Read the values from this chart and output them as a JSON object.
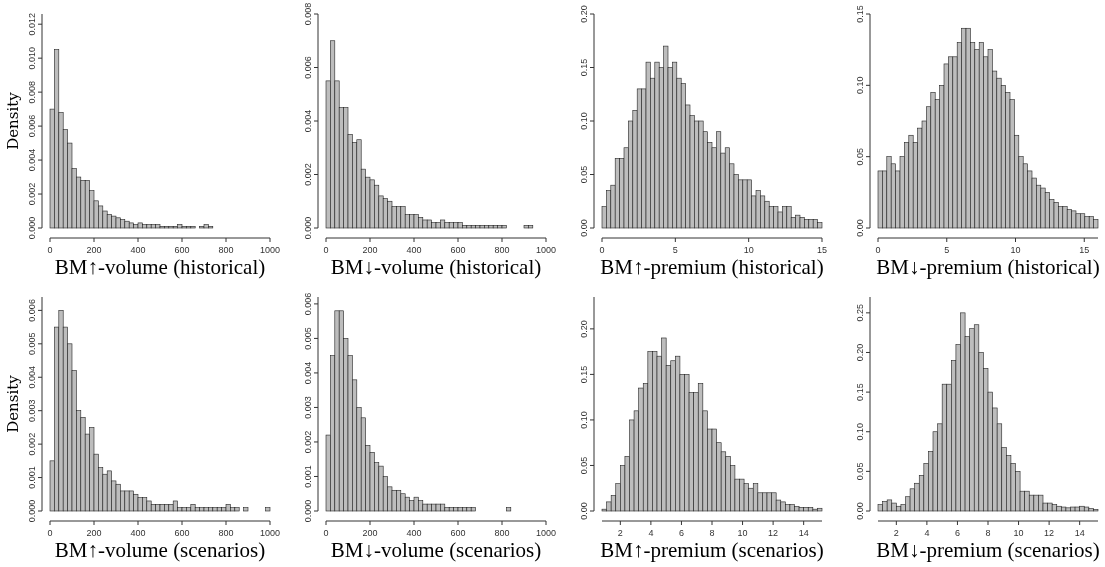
{
  "chart_data": [
    {
      "type": "histogram",
      "xlabel": "BM↑-volume (historical)",
      "ylabel": "Density",
      "color": "#bdbdbd",
      "bins": [
        0,
        20,
        40,
        60,
        80,
        100,
        120,
        140,
        160,
        180,
        200,
        220,
        240,
        260,
        280,
        300,
        320,
        340,
        360,
        380,
        400,
        420,
        440,
        460,
        480,
        500,
        520,
        540,
        560,
        580,
        600,
        620,
        640,
        660,
        680,
        700,
        720,
        740,
        760,
        780,
        800,
        820,
        840,
        860,
        880,
        900,
        920,
        940,
        960,
        980,
        1000
      ],
      "values": [
        0.007,
        0.0105,
        0.0068,
        0.0058,
        0.005,
        0.0035,
        0.003,
        0.0028,
        0.0028,
        0.0022,
        0.0016,
        0.0013,
        0.001,
        0.0008,
        0.0007,
        0.0006,
        0.0005,
        0.0004,
        0.0003,
        0.0002,
        0.0003,
        0.0002,
        0.0002,
        0.0002,
        0.0002,
        0.0001,
        0.0001,
        0.0001,
        0.0001,
        0.0002,
        0.0001,
        0.0001,
        0.0001,
        0,
        0.0001,
        0.0002,
        0.0001,
        0,
        0,
        0,
        0,
        0,
        0,
        0,
        0,
        0,
        0,
        0,
        0,
        0
      ],
      "xlim": [
        0,
        1000
      ],
      "xticks": [
        0,
        200,
        400,
        600,
        800,
        1000
      ],
      "ylim": [
        0,
        0.0126
      ],
      "yticks": [
        {
          "value": 0,
          "label": "0.000"
        },
        {
          "value": 0.002,
          "label": "0.002"
        },
        {
          "value": 0.004,
          "label": "0.004"
        },
        {
          "value": 0.006,
          "label": "0.006"
        },
        {
          "value": 0.008,
          "label": "0.008"
        },
        {
          "value": 0.01,
          "label": "0.010"
        },
        {
          "value": 0.012,
          "label": "0.012"
        }
      ]
    },
    {
      "type": "histogram",
      "xlabel": "BM↓-volume (historical)",
      "color": "#bdbdbd",
      "bins": [
        0,
        20,
        40,
        60,
        80,
        100,
        120,
        140,
        160,
        180,
        200,
        220,
        240,
        260,
        280,
        300,
        320,
        340,
        360,
        380,
        400,
        420,
        440,
        460,
        480,
        500,
        520,
        540,
        560,
        580,
        600,
        620,
        640,
        660,
        680,
        700,
        720,
        740,
        760,
        780,
        800,
        820,
        840,
        860,
        880,
        900,
        920,
        940,
        960,
        980,
        1000
      ],
      "values": [
        0.0055,
        0.007,
        0.0055,
        0.0045,
        0.0045,
        0.0035,
        0.0032,
        0.0033,
        0.0022,
        0.0019,
        0.0018,
        0.0016,
        0.0012,
        0.0011,
        0.001,
        0.0008,
        0.0008,
        0.0008,
        0.0005,
        0.0005,
        0.0005,
        0.0004,
        0.0003,
        0.0003,
        0.0002,
        0.0002,
        0.0003,
        0.0002,
        0.0002,
        0.0002,
        0.0002,
        0.0001,
        0.0001,
        0.0001,
        0.0001,
        0.0001,
        0.0001,
        0.0001,
        0.0001,
        0.0001,
        0.0001,
        0,
        0,
        0,
        0,
        0.0001,
        0.0001,
        0,
        0,
        0
      ],
      "xlim": [
        0,
        1000
      ],
      "xticks": [
        0,
        200,
        400,
        600,
        800,
        1000
      ],
      "ylim": [
        0,
        0.008
      ],
      "yticks": [
        {
          "value": 0,
          "label": "0.000"
        },
        {
          "value": 0.002,
          "label": "0.002"
        },
        {
          "value": 0.004,
          "label": "0.004"
        },
        {
          "value": 0.006,
          "label": "0.006"
        },
        {
          "value": 0.008,
          "label": "0.008"
        }
      ]
    },
    {
      "type": "histogram",
      "xlabel": "BM↑-premium (historical)",
      "color": "#bdbdbd",
      "bins": [
        0,
        0.3,
        0.6,
        0.9,
        1.2,
        1.5,
        1.8,
        2.1,
        2.4,
        2.7,
        3,
        3.3,
        3.6,
        3.9,
        4.2,
        4.5,
        4.8,
        5.1,
        5.4,
        5.7,
        6,
        6.3,
        6.6,
        6.9,
        7.2,
        7.5,
        7.8,
        8.1,
        8.4,
        8.7,
        9,
        9.3,
        9.6,
        9.9,
        10.2,
        10.5,
        10.8,
        11.1,
        11.4,
        11.7,
        12,
        12.3,
        12.6,
        12.9,
        13.2,
        13.5,
        13.8,
        14.1,
        14.4,
        14.7,
        15
      ],
      "values": [
        0.02,
        0.035,
        0.04,
        0.065,
        0.065,
        0.075,
        0.1,
        0.11,
        0.13,
        0.13,
        0.155,
        0.14,
        0.155,
        0.15,
        0.17,
        0.15,
        0.155,
        0.14,
        0.135,
        0.115,
        0.105,
        0.1,
        0.1,
        0.09,
        0.08,
        0.075,
        0.09,
        0.07,
        0.075,
        0.06,
        0.05,
        0.045,
        0.045,
        0.045,
        0.03,
        0.035,
        0.03,
        0.025,
        0.02,
        0.02,
        0.015,
        0.02,
        0.02,
        0.01,
        0.012,
        0.01,
        0.008,
        0.008,
        0.008,
        0.005
      ],
      "xlim": [
        0,
        15
      ],
      "xticks": [
        0,
        5,
        10,
        15
      ],
      "ylim": [
        0,
        0.2
      ],
      "yticks": [
        {
          "value": 0,
          "label": "0.00"
        },
        {
          "value": 0.05,
          "label": "0.05"
        },
        {
          "value": 0.1,
          "label": "0.10"
        },
        {
          "value": 0.15,
          "label": "0.15"
        },
        {
          "value": 0.2,
          "label": "0.20"
        }
      ]
    },
    {
      "type": "histogram",
      "xlabel": "BM↓-premium (historical)",
      "color": "#bdbdbd",
      "bins": [
        0,
        0.32,
        0.64,
        0.96,
        1.28,
        1.6,
        1.92,
        2.24,
        2.56,
        2.88,
        3.2,
        3.52,
        3.84,
        4.16,
        4.48,
        4.8,
        5.12,
        5.44,
        5.76,
        6.08,
        6.4,
        6.72,
        7.04,
        7.36,
        7.68,
        8,
        8.32,
        8.64,
        8.96,
        9.28,
        9.6,
        9.92,
        10.24,
        10.56,
        10.88,
        11.2,
        11.52,
        11.84,
        12.16,
        12.48,
        12.8,
        13.12,
        13.44,
        13.76,
        14.08,
        14.4,
        14.72,
        15.04,
        15.36,
        15.68,
        16
      ],
      "values": [
        0.04,
        0.04,
        0.05,
        0.045,
        0.04,
        0.05,
        0.06,
        0.065,
        0.06,
        0.07,
        0.075,
        0.085,
        0.095,
        0.09,
        0.1,
        0.115,
        0.12,
        0.12,
        0.13,
        0.14,
        0.14,
        0.13,
        0.125,
        0.13,
        0.12,
        0.125,
        0.11,
        0.105,
        0.1,
        0.095,
        0.09,
        0.065,
        0.05,
        0.045,
        0.04,
        0.035,
        0.03,
        0.028,
        0.025,
        0.02,
        0.018,
        0.015,
        0.015,
        0.013,
        0.012,
        0.01,
        0.01,
        0.008,
        0.008,
        0.006
      ],
      "xlim": [
        0,
        16
      ],
      "xticks": [
        0,
        5,
        10,
        15
      ],
      "ylim": [
        0,
        0.15
      ],
      "yticks": [
        {
          "value": 0,
          "label": "0.00"
        },
        {
          "value": 0.05,
          "label": "0.05"
        },
        {
          "value": 0.1,
          "label": "0.10"
        },
        {
          "value": 0.15,
          "label": "0.15"
        }
      ]
    },
    {
      "type": "histogram",
      "xlabel": "BM↑-volume (scenarios)",
      "ylabel": "Density",
      "color": "#bdbdbd",
      "bins": [
        0,
        20,
        40,
        60,
        80,
        100,
        120,
        140,
        160,
        180,
        200,
        220,
        240,
        260,
        280,
        300,
        320,
        340,
        360,
        380,
        400,
        420,
        440,
        460,
        480,
        500,
        520,
        540,
        560,
        580,
        600,
        620,
        640,
        660,
        680,
        700,
        720,
        740,
        760,
        780,
        800,
        820,
        840,
        860,
        880,
        900,
        920,
        940,
        960,
        980,
        1000
      ],
      "values": [
        0.0015,
        0.0055,
        0.006,
        0.0055,
        0.005,
        0.0042,
        0.003,
        0.0028,
        0.0023,
        0.0025,
        0.0017,
        0.0013,
        0.0011,
        0.0012,
        0.0009,
        0.0008,
        0.0006,
        0.0006,
        0.0006,
        0.0005,
        0.0004,
        0.0004,
        0.0003,
        0.0002,
        0.0002,
        0.0002,
        0.0002,
        0.0002,
        0.0003,
        0.0001,
        0.0001,
        0.0001,
        0.0002,
        0.0001,
        0.0001,
        0.0001,
        0.0001,
        0.0001,
        0.0001,
        0.0001,
        0.0002,
        0.0001,
        0.0001,
        0,
        0.0001,
        0,
        0,
        0,
        0,
        0.0001
      ],
      "xlim": [
        0,
        1000
      ],
      "xticks": [
        0,
        200,
        400,
        600,
        800,
        1000
      ],
      "ylim": [
        0,
        0.0064
      ],
      "yticks": [
        {
          "value": 0,
          "label": "0.000"
        },
        {
          "value": 0.001,
          "label": "0.001"
        },
        {
          "value": 0.002,
          "label": "0.002"
        },
        {
          "value": 0.003,
          "label": "0.003"
        },
        {
          "value": 0.004,
          "label": "0.004"
        },
        {
          "value": 0.005,
          "label": "0.005"
        },
        {
          "value": 0.006,
          "label": "0.006"
        }
      ]
    },
    {
      "type": "histogram",
      "xlabel": "BM↓-volume (scenarios)",
      "color": "#bdbdbd",
      "bins": [
        0,
        20,
        40,
        60,
        80,
        100,
        120,
        140,
        160,
        180,
        200,
        220,
        240,
        260,
        280,
        300,
        320,
        340,
        360,
        380,
        400,
        420,
        440,
        460,
        480,
        500,
        520,
        540,
        560,
        580,
        600,
        620,
        640,
        660,
        680,
        700,
        720,
        740,
        760,
        780,
        800,
        820,
        840,
        860,
        880,
        900,
        920,
        940,
        960,
        980,
        1000
      ],
      "values": [
        0.0022,
        0.0045,
        0.0058,
        0.0058,
        0.005,
        0.0045,
        0.0038,
        0.003,
        0.0027,
        0.0019,
        0.0017,
        0.0014,
        0.0013,
        0.001,
        0.0007,
        0.0006,
        0.0006,
        0.0005,
        0.0004,
        0.0003,
        0.0004,
        0.0003,
        0.0002,
        0.0002,
        0.0002,
        0.0002,
        0.0002,
        0.0001,
        0.0001,
        0.0001,
        0.0001,
        0.0001,
        0.0001,
        0.0001,
        0,
        0,
        0,
        0,
        0,
        0,
        0,
        0.0001,
        0,
        0,
        0,
        0,
        0,
        0,
        0,
        0
      ],
      "xlim": [
        0,
        1000
      ],
      "xticks": [
        0,
        200,
        400,
        600,
        800,
        1000
      ],
      "ylim": [
        0,
        0.0062
      ],
      "yticks": [
        {
          "value": 0,
          "label": "0.000"
        },
        {
          "value": 0.001,
          "label": "0.001"
        },
        {
          "value": 0.002,
          "label": "0.002"
        },
        {
          "value": 0.003,
          "label": "0.003"
        },
        {
          "value": 0.004,
          "label": "0.004"
        },
        {
          "value": 0.005,
          "label": "0.005"
        },
        {
          "value": 0.006,
          "label": "0.006"
        }
      ]
    },
    {
      "type": "histogram",
      "xlabel": "BM↑-premium (scenarios)",
      "color": "#bdbdbd",
      "bins": [
        0.8,
        1.1,
        1.4,
        1.7,
        2,
        2.3,
        2.6,
        2.9,
        3.2,
        3.5,
        3.8,
        4.1,
        4.4,
        4.7,
        5,
        5.3,
        5.6,
        5.9,
        6.2,
        6.5,
        6.8,
        7.1,
        7.4,
        7.7,
        8,
        8.3,
        8.6,
        8.9,
        9.2,
        9.5,
        9.8,
        10.1,
        10.4,
        10.7,
        11,
        11.3,
        11.6,
        11.9,
        12.2,
        12.5,
        12.8,
        13.1,
        13.4,
        13.7,
        14,
        14.3,
        14.6,
        14.9,
        15.2
      ],
      "values": [
        0.002,
        0.01,
        0.017,
        0.03,
        0.05,
        0.06,
        0.1,
        0.11,
        0.135,
        0.14,
        0.175,
        0.175,
        0.17,
        0.19,
        0.16,
        0.165,
        0.17,
        0.15,
        0.15,
        0.13,
        0.13,
        0.14,
        0.11,
        0.09,
        0.09,
        0.075,
        0.065,
        0.06,
        0.05,
        0.035,
        0.035,
        0.03,
        0.025,
        0.03,
        0.02,
        0.02,
        0.02,
        0.02,
        0.012,
        0.01,
        0.007,
        0.007,
        0.005,
        0.004,
        0.004,
        0.004,
        0.002,
        0.003
      ],
      "xlim": [
        0.8,
        15.2
      ],
      "xticks": [
        2,
        4,
        6,
        8,
        10,
        12,
        14
      ],
      "ylim": [
        0,
        0.235
      ],
      "yticks": [
        {
          "value": 0,
          "label": "0.00"
        },
        {
          "value": 0.05,
          "label": "0.05"
        },
        {
          "value": 0.1,
          "label": "0.10"
        },
        {
          "value": 0.15,
          "label": "0.15"
        },
        {
          "value": 0.2,
          "label": "0.20"
        }
      ]
    },
    {
      "type": "histogram",
      "xlabel": "BM↓-premium (scenarios)",
      "color": "#bdbdbd",
      "bins": [
        0.8,
        1.1,
        1.4,
        1.7,
        2,
        2.3,
        2.6,
        2.9,
        3.2,
        3.5,
        3.8,
        4.1,
        4.4,
        4.7,
        5,
        5.3,
        5.6,
        5.9,
        6.2,
        6.5,
        6.8,
        7.1,
        7.4,
        7.7,
        8,
        8.3,
        8.6,
        8.9,
        9.2,
        9.5,
        9.8,
        10.1,
        10.4,
        10.7,
        11,
        11.3,
        11.6,
        11.9,
        12.2,
        12.5,
        12.8,
        13.1,
        13.4,
        13.7,
        14,
        14.3,
        14.6,
        14.9,
        15.2
      ],
      "values": [
        0.008,
        0.012,
        0.014,
        0.01,
        0.006,
        0.008,
        0.018,
        0.028,
        0.035,
        0.045,
        0.06,
        0.075,
        0.1,
        0.11,
        0.16,
        0.16,
        0.19,
        0.21,
        0.25,
        0.22,
        0.23,
        0.235,
        0.2,
        0.18,
        0.15,
        0.13,
        0.11,
        0.08,
        0.07,
        0.06,
        0.05,
        0.025,
        0.025,
        0.02,
        0.02,
        0.02,
        0.01,
        0.01,
        0.008,
        0.006,
        0.005,
        0.004,
        0.005,
        0.005,
        0.006,
        0.005,
        0.003,
        0.002
      ],
      "xlim": [
        0.8,
        15.2
      ],
      "xticks": [
        2,
        4,
        6,
        8,
        10,
        12,
        14
      ],
      "ylim": [
        0,
        0.27
      ],
      "yticks": [
        {
          "value": 0,
          "label": "0.00"
        },
        {
          "value": 0.05,
          "label": "0.05"
        },
        {
          "value": 0.1,
          "label": "0.10"
        },
        {
          "value": 0.15,
          "label": "0.15"
        },
        {
          "value": 0.2,
          "label": "0.20"
        },
        {
          "value": 0.25,
          "label": "0.25"
        }
      ]
    }
  ]
}
